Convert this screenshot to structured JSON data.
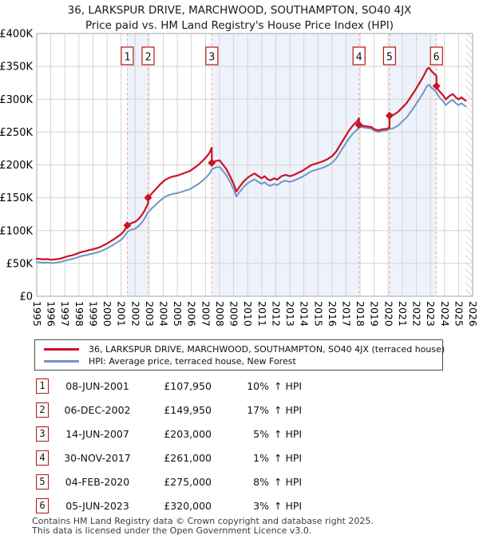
{
  "title": {
    "line1": "36, LARKSPUR DRIVE, MARCHWOOD, SOUTHAMPTON, SO40 4JX",
    "line2": "Price paid vs. HM Land Registry's House Price Index (HPI)"
  },
  "colors": {
    "property_line": "#cc1124",
    "hpi_line": "#6d97c6",
    "ownership_band": "#eef2fa",
    "sale_dashed_line": "#f29e9e",
    "grid": "#d4d4d4",
    "plot_border": "#a6a6a6",
    "marker_box_border": "#b31414",
    "hatch_line": "#bbbbbb",
    "text": "#111111",
    "footer_text": "#3d3d3d"
  },
  "chart_data": {
    "type": "line",
    "title": "36, LARKSPUR DRIVE, MARCHWOOD, SOUTHAMPTON, SO40 4JX — Price paid vs. HM Land Registry's House Price Index (HPI)",
    "x_axis": {
      "min": 1995,
      "max": 2026,
      "ticks": [
        1995,
        1996,
        1997,
        1998,
        1999,
        2000,
        2001,
        2002,
        2003,
        2004,
        2005,
        2006,
        2007,
        2008,
        2009,
        2010,
        2011,
        2012,
        2013,
        2014,
        2015,
        2016,
        2017,
        2018,
        2019,
        2020,
        2021,
        2022,
        2023,
        2024,
        2025,
        2026
      ]
    },
    "y_axis": {
      "min": 0,
      "max": 400,
      "unit": "GBP_thousands",
      "tick_values": [
        0,
        50,
        100,
        150,
        200,
        250,
        300,
        350,
        400
      ],
      "tick_labels": [
        "£0",
        "£50K",
        "£100K",
        "£150K",
        "£200K",
        "£250K",
        "£300K",
        "£350K",
        "£400K"
      ]
    },
    "grid": true,
    "legend_position": "below",
    "series": [
      {
        "name": "36, LARKSPUR DRIVE, MARCHWOOD, SOUTHAMPTON, SO40 4JX (terraced house)",
        "color": "#cc1124",
        "x": [
          1995,
          1995.25,
          1995.5,
          1995.75,
          1996,
          1996.25,
          1996.5,
          1996.75,
          1997,
          1997.25,
          1997.5,
          1997.75,
          1998,
          1998.25,
          1998.5,
          1998.75,
          1999,
          1999.25,
          1999.5,
          1999.75,
          2000,
          2000.25,
          2000.5,
          2000.75,
          2001,
          2001.2,
          2001.44,
          2001.7,
          2002,
          2002.3,
          2002.6,
          2002.92,
          2002.92,
          2003.2,
          2003.5,
          2003.8,
          2004.1,
          2004.4,
          2004.7,
          2005,
          2005.3,
          2005.6,
          2005.9,
          2006.2,
          2006.5,
          2006.8,
          2007.1,
          2007.3,
          2007.45,
          2007.45,
          2007.7,
          2008,
          2008.2,
          2008.5,
          2008.8,
          2009,
          2009.2,
          2009.4,
          2009.7,
          2010,
          2010.3,
          2010.5,
          2010.7,
          2011,
          2011.2,
          2011.4,
          2011.6,
          2011.9,
          2012.1,
          2012.4,
          2012.7,
          2013,
          2013.3,
          2013.6,
          2013.9,
          2014.2,
          2014.5,
          2014.8,
          2015.1,
          2015.4,
          2015.7,
          2016,
          2016.3,
          2016.6,
          2016.9,
          2017.2,
          2017.5,
          2017.8,
          2017.92,
          2017.92,
          2018.2,
          2018.5,
          2018.8,
          2019,
          2019.3,
          2019.6,
          2019.9,
          2020.09,
          2020.09,
          2020.4,
          2020.7,
          2021,
          2021.3,
          2021.6,
          2021.9,
          2022.2,
          2022.5,
          2022.75,
          2022.9,
          2023.1,
          2023.43,
          2023.43,
          2023.6,
          2023.9,
          2024.1,
          2024.35,
          2024.6,
          2024.8,
          2025,
          2025.2,
          2025.5
        ],
        "y": [
          57.2,
          56.7,
          56.1,
          56.7,
          55.6,
          56.1,
          56.7,
          57.8,
          59.4,
          61.1,
          62.2,
          63.8,
          66,
          67.7,
          68.8,
          70.4,
          71.5,
          73.2,
          74.8,
          77.6,
          80.3,
          83.6,
          86.9,
          90.8,
          94.6,
          99,
          107.95,
          111.1,
          113.3,
          118.8,
          127.6,
          141,
          149.95,
          156.8,
          163.8,
          170.8,
          176.7,
          180.2,
          182.5,
          183.7,
          186,
          188.4,
          190.7,
          195.4,
          200.1,
          205.9,
          212.9,
          218.8,
          226.2,
          203,
          205.8,
          206.9,
          201.6,
          193.2,
          180.6,
          171.2,
          159.6,
          165.9,
          174.3,
          180.6,
          184.8,
          186.9,
          183.8,
          179.6,
          182.7,
          178.5,
          176.4,
          179.6,
          177.5,
          182.7,
          184.8,
          182.7,
          184.8,
          188,
          191.1,
          195.3,
          199.5,
          201.6,
          203.7,
          205.8,
          209,
          213.2,
          220.5,
          231,
          241.5,
          252,
          260.4,
          266.7,
          271.3,
          261,
          259.6,
          258.6,
          257.6,
          254.5,
          252.5,
          254.5,
          255,
          257.1,
          275,
          276.5,
          280.8,
          287.3,
          293.8,
          303.5,
          313.2,
          324,
          334.8,
          345.6,
          347.8,
          342.4,
          335.6,
          320,
          313.1,
          305.9,
          299.7,
          304.9,
          307.9,
          302.8,
          299.7,
          302.8,
          297.7
        ]
      },
      {
        "name": "HPI: Average price, terraced house, New Forest",
        "color": "#6d97c6",
        "x": [
          1995,
          1995.25,
          1995.5,
          1995.75,
          1996,
          1996.25,
          1996.5,
          1996.75,
          1997,
          1997.25,
          1997.5,
          1997.75,
          1998,
          1998.25,
          1998.5,
          1998.75,
          1999,
          1999.25,
          1999.5,
          1999.75,
          2000,
          2000.25,
          2000.5,
          2000.75,
          2001,
          2001.2,
          2001.44,
          2001.7,
          2002,
          2002.3,
          2002.6,
          2002.92,
          2003.2,
          2003.5,
          2003.8,
          2004.1,
          2004.4,
          2004.7,
          2005,
          2005.3,
          2005.6,
          2005.9,
          2006.2,
          2006.5,
          2006.8,
          2007.1,
          2007.3,
          2007.45,
          2007.7,
          2008,
          2008.2,
          2008.5,
          2008.8,
          2009,
          2009.2,
          2009.4,
          2009.7,
          2010,
          2010.3,
          2010.5,
          2010.7,
          2011,
          2011.2,
          2011.4,
          2011.6,
          2011.9,
          2012.1,
          2012.4,
          2012.7,
          2013,
          2013.3,
          2013.6,
          2013.9,
          2014.2,
          2014.5,
          2014.8,
          2015.1,
          2015.4,
          2015.7,
          2016,
          2016.3,
          2016.6,
          2016.9,
          2017.2,
          2017.5,
          2017.8,
          2017.92,
          2018.2,
          2018.5,
          2018.8,
          2019,
          2019.3,
          2019.6,
          2019.9,
          2020.09,
          2020.4,
          2020.7,
          2021,
          2021.3,
          2021.6,
          2021.9,
          2022.2,
          2022.5,
          2022.75,
          2022.9,
          2023.1,
          2023.43,
          2023.6,
          2023.9,
          2024.1,
          2024.35,
          2024.6,
          2024.8,
          2025,
          2025.2,
          2025.5
        ],
        "y": [
          52,
          51.5,
          51,
          51.5,
          50.5,
          51,
          51.5,
          52.5,
          54,
          55.5,
          56.5,
          58,
          60,
          61.5,
          62.5,
          64,
          65,
          66.5,
          68,
          70.5,
          73,
          76,
          79,
          82.5,
          86,
          90,
          98.1,
          101,
          103,
          108,
          116,
          128.2,
          134,
          140,
          146,
          151,
          154,
          156,
          157,
          159,
          161,
          163,
          167,
          171,
          176,
          182,
          187,
          193.3,
          196,
          197,
          192,
          184,
          172,
          163,
          152,
          158,
          166,
          172,
          176,
          178,
          175,
          171,
          174,
          170,
          168,
          171,
          169,
          174,
          176,
          174,
          176,
          179,
          182,
          186,
          190,
          192,
          194,
          196,
          199,
          203,
          210,
          220,
          230,
          240,
          248,
          254,
          258.4,
          257,
          256,
          255,
          252,
          250,
          252,
          252.5,
          254.6,
          256,
          260,
          266,
          272,
          281,
          290,
          300,
          310,
          320,
          322,
          317,
          310.7,
          304,
          297,
          291,
          296,
          299,
          294,
          291,
          294,
          289
        ]
      }
    ],
    "sales": [
      {
        "label": "1",
        "x": 2001.44,
        "y": 107.95,
        "date": "08-JUN-2001",
        "price": "£107,950",
        "vs_hpi": "10% ↑ HPI"
      },
      {
        "label": "2",
        "x": 2002.92,
        "y": 149.95,
        "date": "06-DEC-2002",
        "price": "£149,950",
        "vs_hpi": "17% ↑ HPI"
      },
      {
        "label": "3",
        "x": 2007.45,
        "y": 203,
        "date": "14-JUN-2007",
        "price": "£203,000",
        "vs_hpi": "5% ↑ HPI"
      },
      {
        "label": "4",
        "x": 2017.92,
        "y": 261,
        "date": "30-NOV-2017",
        "price": "£261,000",
        "vs_hpi": "1% ↑ HPI"
      },
      {
        "label": "5",
        "x": 2020.09,
        "y": 275,
        "date": "04-FEB-2020",
        "price": "£275,000",
        "vs_hpi": "8% ↑ HPI"
      },
      {
        "label": "6",
        "x": 2023.43,
        "y": 320,
        "date": "05-JUN-2023",
        "price": "£320,000",
        "vs_hpi": "3% ↑ HPI"
      }
    ],
    "ownership_bands": [
      [
        2001.44,
        2002.92
      ],
      [
        2007.45,
        2017.92
      ],
      [
        2020.09,
        2023.43
      ]
    ],
    "future_hatch": [
      2025.5,
      2026
    ]
  },
  "legend": {
    "items": [
      {
        "label": "36, LARKSPUR DRIVE, MARCHWOOD, SOUTHAMPTON, SO40 4JX (terraced house)",
        "color": "#cc1124"
      },
      {
        "label": "HPI: Average price, terraced house, New Forest",
        "color": "#6d97c6"
      }
    ]
  },
  "table": {
    "rows": [
      {
        "num": "1",
        "date": "08-JUN-2001",
        "price": "£107,950",
        "pct": "10%",
        "ref": "↑ HPI"
      },
      {
        "num": "2",
        "date": "06-DEC-2002",
        "price": "£149,950",
        "pct": "17%",
        "ref": "↑ HPI"
      },
      {
        "num": "3",
        "date": "14-JUN-2007",
        "price": "£203,000",
        "pct": "5%",
        "ref": "↑ HPI"
      },
      {
        "num": "4",
        "date": "30-NOV-2017",
        "price": "£261,000",
        "pct": "1%",
        "ref": "↑ HPI"
      },
      {
        "num": "5",
        "date": "04-FEB-2020",
        "price": "£275,000",
        "pct": "8%",
        "ref": "↑ HPI"
      },
      {
        "num": "6",
        "date": "05-JUN-2023",
        "price": "£320,000",
        "pct": "3%",
        "ref": "↑ HPI"
      }
    ]
  },
  "footer": {
    "line1": "Contains HM Land Registry data © Crown copyright and database right 2025.",
    "line2": "This data is licensed under the Open Government Licence v3.0."
  }
}
